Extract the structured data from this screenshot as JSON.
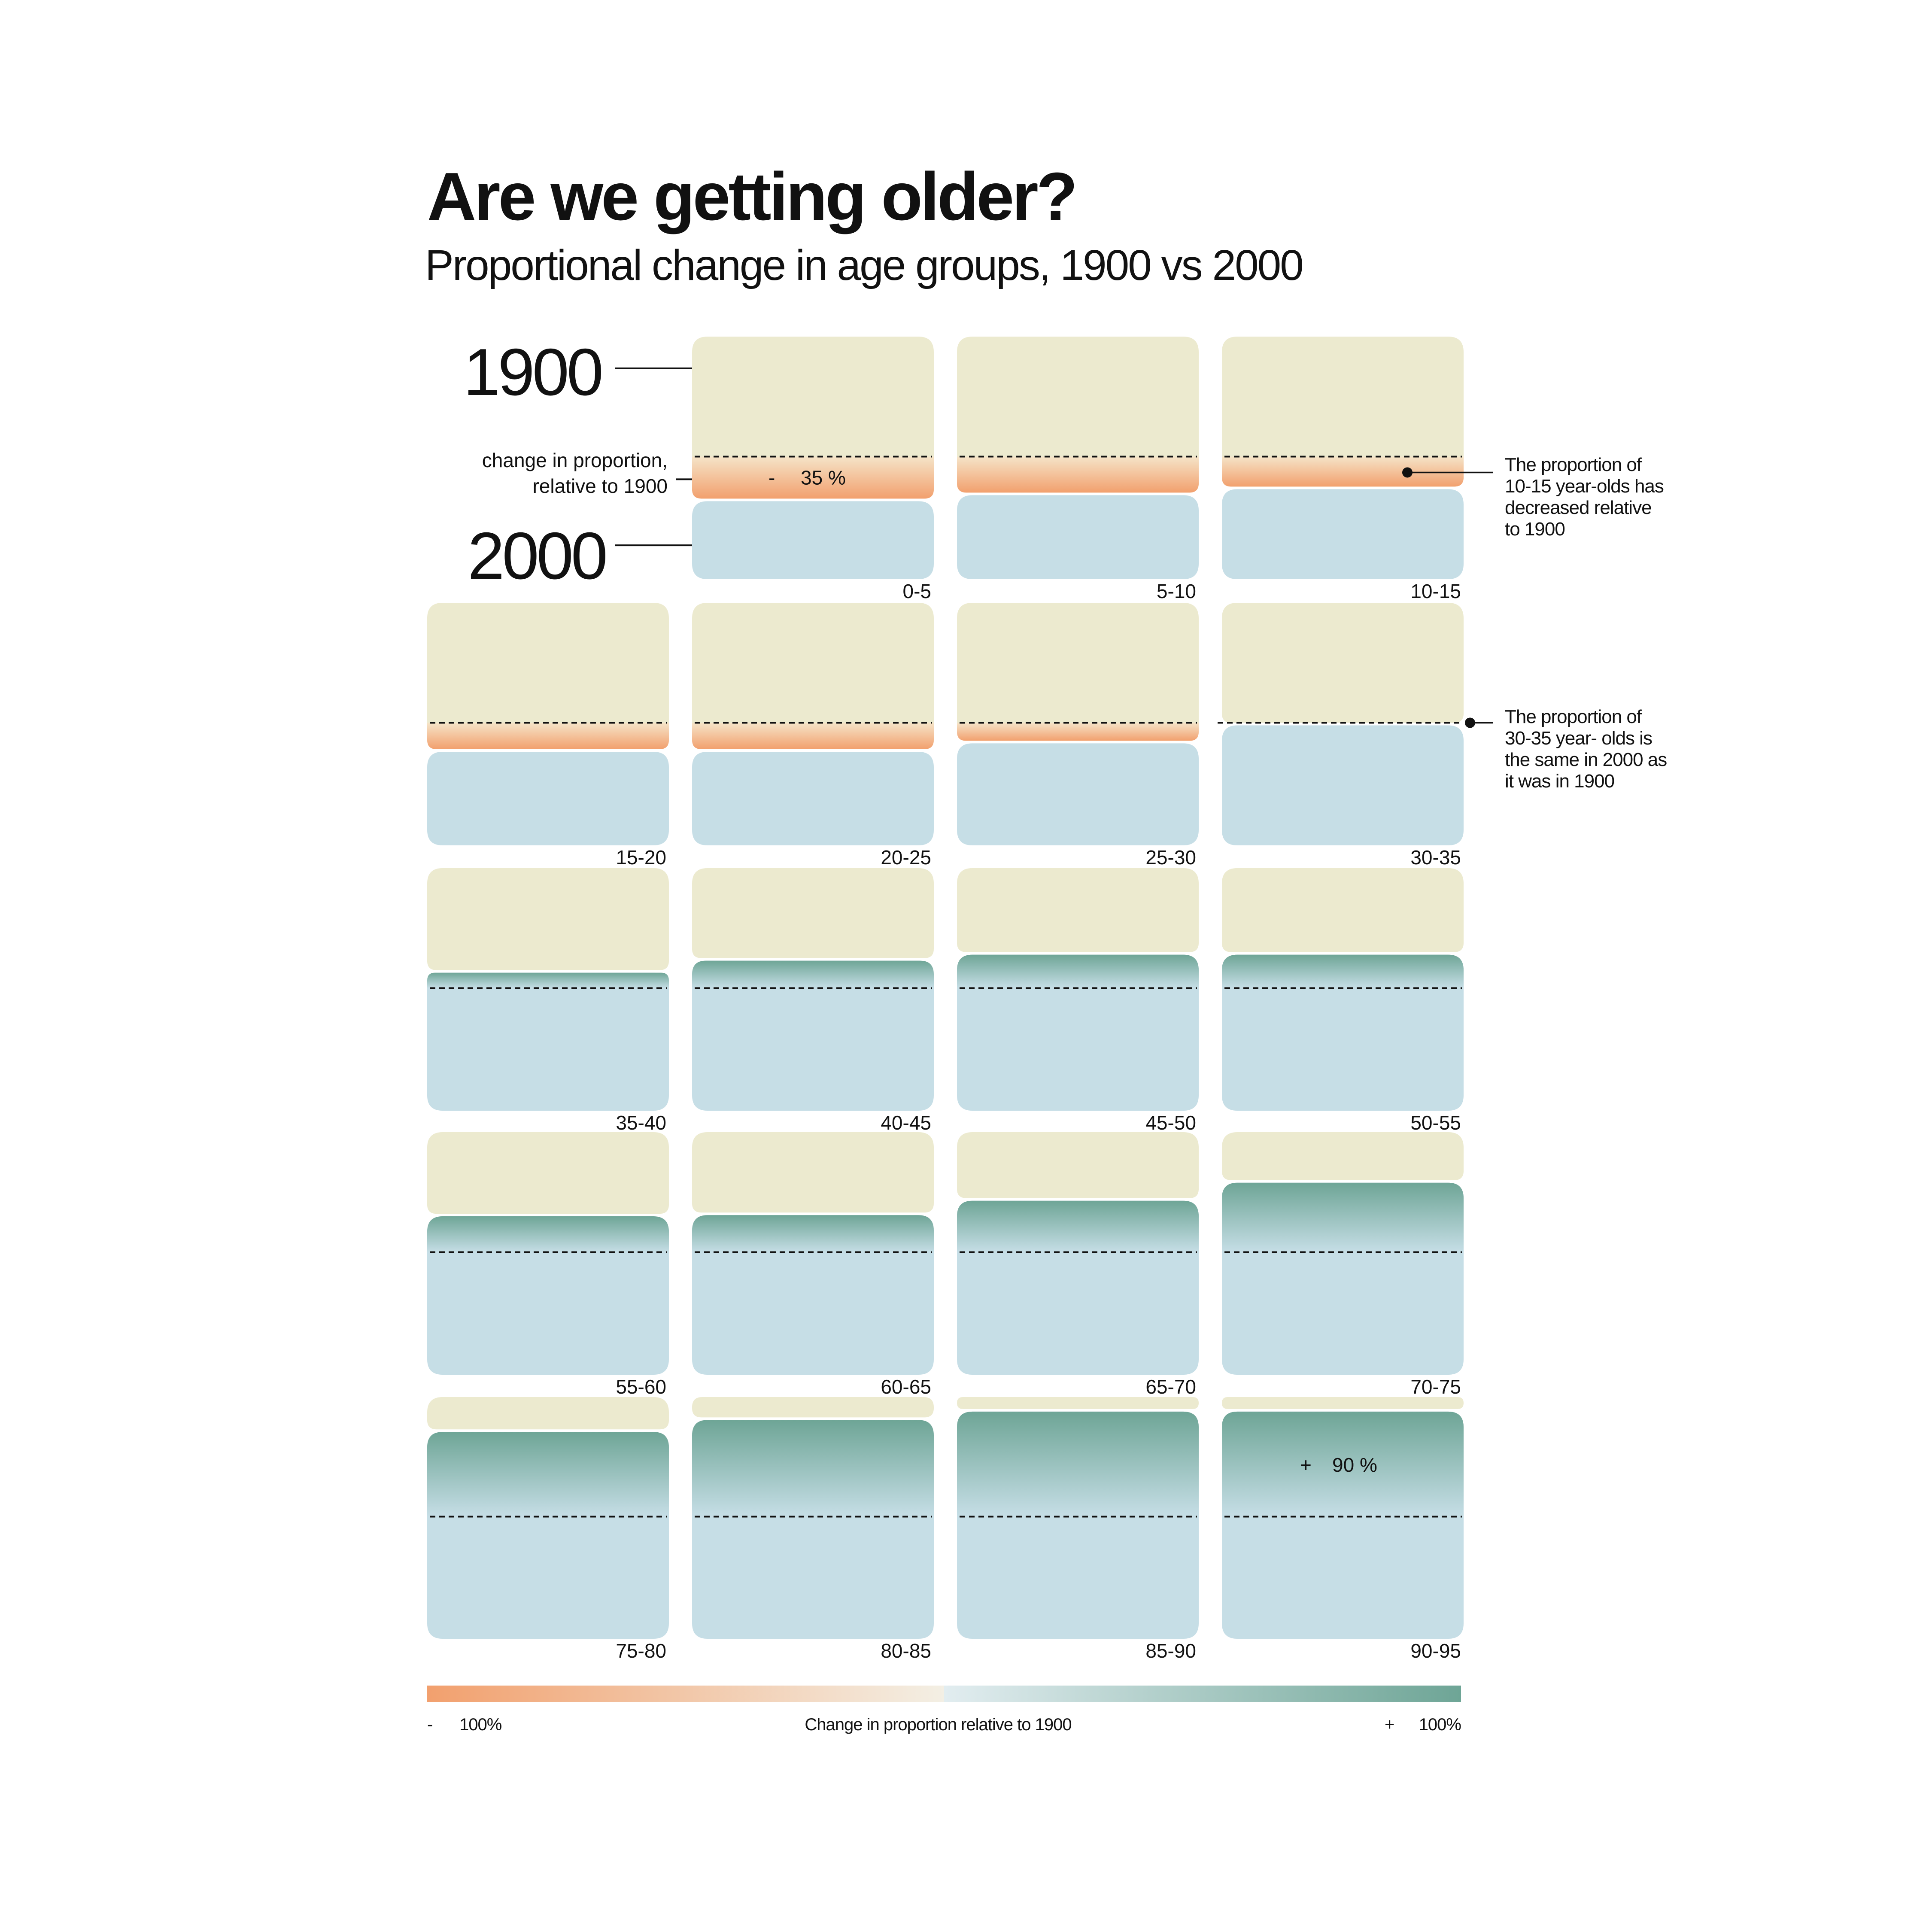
{
  "title": "Are we getting older?",
  "subtitle": "Proportional change in age groups, 1900 vs 2000",
  "key": {
    "year_1900": "1900",
    "year_2000": "2000",
    "change_label_line1": "change in proportion,",
    "change_label_line2": "relative to 1900"
  },
  "annotations": [
    {
      "lines": [
        "The proportion of",
        "10-15 year-olds has",
        "decreased relative",
        "to 1900"
      ],
      "category": "10-15"
    },
    {
      "lines": [
        "The proportion of",
        "30-35 year- olds is",
        "the same in 2000 as",
        "it was in 1900"
      ],
      "category": "30-35"
    }
  ],
  "colors": {
    "y1900": "#eceacf",
    "y2000": "#c6dee6",
    "negative": "#f2a06e",
    "positive": "#6ea596",
    "neutral": "#f3efe4"
  },
  "chart_data": {
    "type": "table",
    "categories": [
      "0-5",
      "5-10",
      "10-15",
      "15-20",
      "20-25",
      "25-30",
      "30-35",
      "35-40",
      "40-45",
      "45-50",
      "50-55",
      "55-60",
      "60-65",
      "65-70",
      "70-75",
      "75-80",
      "80-85",
      "85-90",
      "90-95"
    ],
    "series": [
      {
        "name": "change in proportion, relative to 1900",
        "unit": "%",
        "values": [
          -35,
          -30,
          -25,
          -22,
          -22,
          -15,
          0,
          15,
          25,
          30,
          30,
          32,
          33,
          45,
          60,
          73,
          83,
          90,
          90
        ]
      }
    ],
    "printed_values": [
      {
        "category": "0-5",
        "sign": "-",
        "value": "35 %"
      },
      {
        "category": "90-95",
        "sign": "+",
        "value": "90 %"
      }
    ],
    "color_scale": {
      "label": "Change in proportion relative to 1900",
      "min_sign": "-",
      "min_label": "100%",
      "max_sign": "+",
      "max_label": "100%",
      "range": [
        -100,
        100
      ]
    }
  }
}
